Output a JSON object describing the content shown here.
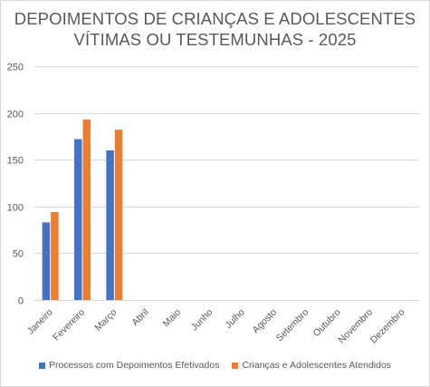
{
  "chart_data": {
    "type": "bar",
    "title_line1": "DEPOIMENTOS DE CRIANÇAS E ADOLESCENTES",
    "title_line2": "VÍTIMAS OU TESTEMUNHAS - 2025",
    "xlabel": "",
    "ylabel": "",
    "ylim": [
      0,
      250
    ],
    "yticks": [
      0,
      50,
      100,
      150,
      200,
      250
    ],
    "grid": true,
    "legend_position": "bottom",
    "categories": [
      "Janeiro",
      "Fevereiro",
      "Março",
      "Abril",
      "Maio",
      "Junho",
      "Julho",
      "Agosto",
      "Setembro",
      "Outubro",
      "Novembro",
      "Dezembro"
    ],
    "series": [
      {
        "name": "Processos com Depoimentos Efetivados",
        "color": "#4472c4",
        "values": [
          83,
          172,
          160,
          null,
          null,
          null,
          null,
          null,
          null,
          null,
          null,
          null
        ]
      },
      {
        "name": "Crianças e Adolescentes Atendidos",
        "color": "#ed7d31",
        "values": [
          94,
          193,
          182,
          null,
          null,
          null,
          null,
          null,
          null,
          null,
          null,
          null
        ]
      }
    ]
  }
}
